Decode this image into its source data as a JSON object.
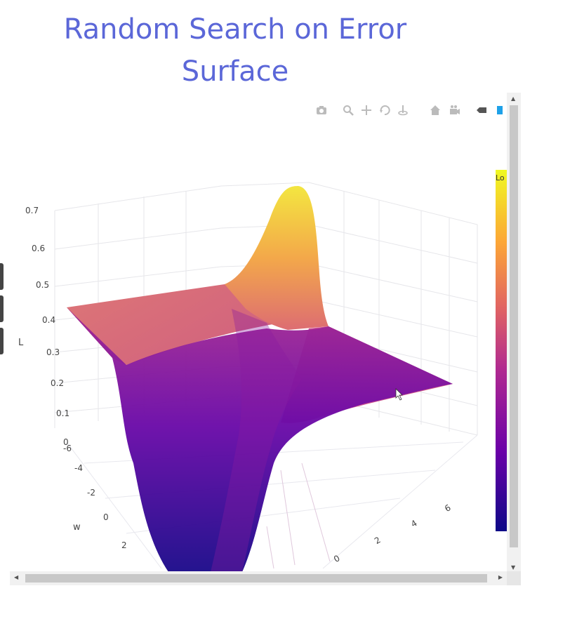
{
  "title": {
    "line1": "Random Search on Error",
    "line2": "Surface"
  },
  "modebar": {
    "buttons": [
      "camera-icon",
      "zoom-icon",
      "pan-icon",
      "orbit-icon",
      "turntable-icon",
      "home-icon",
      "camera-view-icon",
      "hover-closest-icon",
      "hover-compare-icon"
    ]
  },
  "colorbar": {
    "label": "Lo",
    "colors": [
      "#0d0887",
      "#6a00a8",
      "#b12a90",
      "#e16462",
      "#fca636",
      "#f0f921"
    ]
  },
  "chart_data": {
    "type": "surface",
    "title": "",
    "z_label": "L",
    "x_label": "w",
    "y_label": "",
    "z_ticks": [
      "0.7",
      "0.6",
      "0.5",
      "0.4",
      "0.3",
      "0.2",
      "0.1",
      "0"
    ],
    "w_ticks": [
      "-6",
      "-4",
      "-2",
      "0",
      "2"
    ],
    "b_ticks": [
      "0",
      "2",
      "4",
      "6"
    ],
    "zlim": [
      0,
      0.7
    ],
    "corners": {
      "left_edge": 0.42,
      "right_edge": 0.18,
      "peak": 0.7,
      "valley": 0.0
    }
  }
}
